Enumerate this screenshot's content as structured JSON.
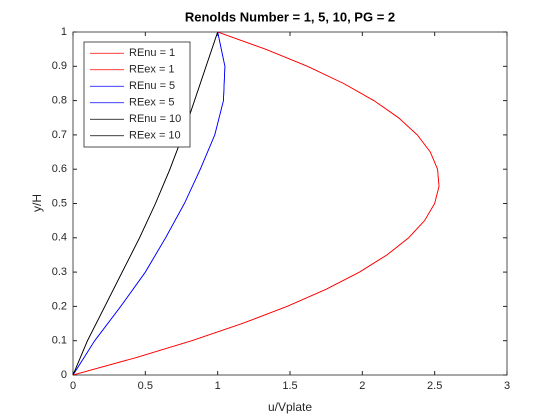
{
  "chart_data": {
    "type": "line",
    "title": "Renolds Number = 1, 5, 10, PG = 2",
    "x_label": "u/Vplate",
    "y_label": "y/H",
    "xlim": [
      0,
      3
    ],
    "ylim": [
      0,
      1
    ],
    "xticks": [
      0,
      0.5,
      1,
      1.5,
      2,
      2.5,
      3
    ],
    "yticks": [
      0,
      0.1,
      0.2,
      0.3,
      0.4,
      0.5,
      0.6,
      0.7,
      0.8,
      0.9,
      1
    ],
    "legend": "upper left",
    "series": [
      {
        "name": "REnu = 1",
        "color": "#ff0000",
        "x": [
          0,
          0.43,
          0.82,
          1.17,
          1.48,
          1.75,
          1.98,
          2.17,
          2.32,
          2.43,
          2.5,
          2.53,
          2.52,
          2.47,
          2.38,
          2.25,
          2.08,
          1.87,
          1.62,
          1.33,
          1
        ],
        "y": [
          0,
          0.05,
          0.1,
          0.15,
          0.2,
          0.25,
          0.3,
          0.35,
          0.4,
          0.45,
          0.5,
          0.55,
          0.6,
          0.65,
          0.7,
          0.75,
          0.8,
          0.85,
          0.9,
          0.95,
          1
        ]
      },
      {
        "name": "REex = 1",
        "color": "#ff0000",
        "x": [
          0,
          0.43,
          0.82,
          1.17,
          1.48,
          1.75,
          1.98,
          2.17,
          2.32,
          2.43,
          2.5,
          2.53,
          2.52,
          2.47,
          2.38,
          2.25,
          2.08,
          1.87,
          1.62,
          1.33,
          1
        ],
        "y": [
          0,
          0.05,
          0.1,
          0.15,
          0.2,
          0.25,
          0.3,
          0.35,
          0.4,
          0.45,
          0.5,
          0.55,
          0.6,
          0.65,
          0.7,
          0.75,
          0.8,
          0.85,
          0.9,
          0.95,
          1
        ]
      },
      {
        "name": "REnu = 5",
        "color": "#0000ff",
        "x": [
          0,
          0.15,
          0.33,
          0.5,
          0.64,
          0.77,
          0.88,
          0.98,
          1.04,
          1.05,
          1
        ],
        "y": [
          0,
          0.1,
          0.2,
          0.3,
          0.4,
          0.5,
          0.6,
          0.7,
          0.8,
          0.9,
          1
        ]
      },
      {
        "name": "REex = 5",
        "color": "#0000ff",
        "x": [
          0,
          0.15,
          0.33,
          0.5,
          0.64,
          0.77,
          0.88,
          0.98,
          1.04,
          1.05,
          1
        ],
        "y": [
          0,
          0.1,
          0.2,
          0.3,
          0.4,
          0.5,
          0.6,
          0.7,
          0.8,
          0.9,
          1
        ]
      },
      {
        "name": "REnu = 10",
        "color": "#000000",
        "x": [
          0,
          0.1,
          0.22,
          0.34,
          0.46,
          0.57,
          0.67,
          0.76,
          0.84,
          0.92,
          1
        ],
        "y": [
          0,
          0.1,
          0.2,
          0.3,
          0.4,
          0.5,
          0.6,
          0.7,
          0.8,
          0.9,
          1
        ]
      },
      {
        "name": "REex = 10",
        "color": "#000000",
        "x": [
          0,
          0.1,
          0.22,
          0.34,
          0.46,
          0.57,
          0.67,
          0.76,
          0.84,
          0.92,
          1
        ],
        "y": [
          0,
          0.1,
          0.2,
          0.3,
          0.4,
          0.5,
          0.6,
          0.7,
          0.8,
          0.9,
          1
        ]
      }
    ]
  }
}
